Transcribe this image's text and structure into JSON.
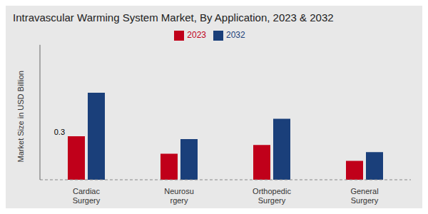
{
  "chart_data": {
    "type": "bar",
    "title": "Intravascular Warming System Market, By Application, 2023 & 2032",
    "y_label": "Market Size in USD Billion",
    "categories": [
      "Cardiac\nSurgery",
      "Neurosu\nrgery",
      "Orthopedic\nSurgery",
      "General\nSurgery"
    ],
    "series": [
      {
        "name": "2023",
        "color": "#c0001a",
        "values": [
          0.3,
          0.18,
          0.24,
          0.13
        ]
      },
      {
        "name": "2032",
        "color": "#1a3f7a",
        "values": [
          0.6,
          0.28,
          0.42,
          0.19
        ]
      }
    ],
    "ylim": [
      0,
      0.93
    ],
    "grid": false,
    "legend": "upper center",
    "tick_labels": "x",
    "annotations": [
      {
        "text": "0.3",
        "category": "Cardiac\nSurgery",
        "series": "2023"
      }
    ]
  }
}
